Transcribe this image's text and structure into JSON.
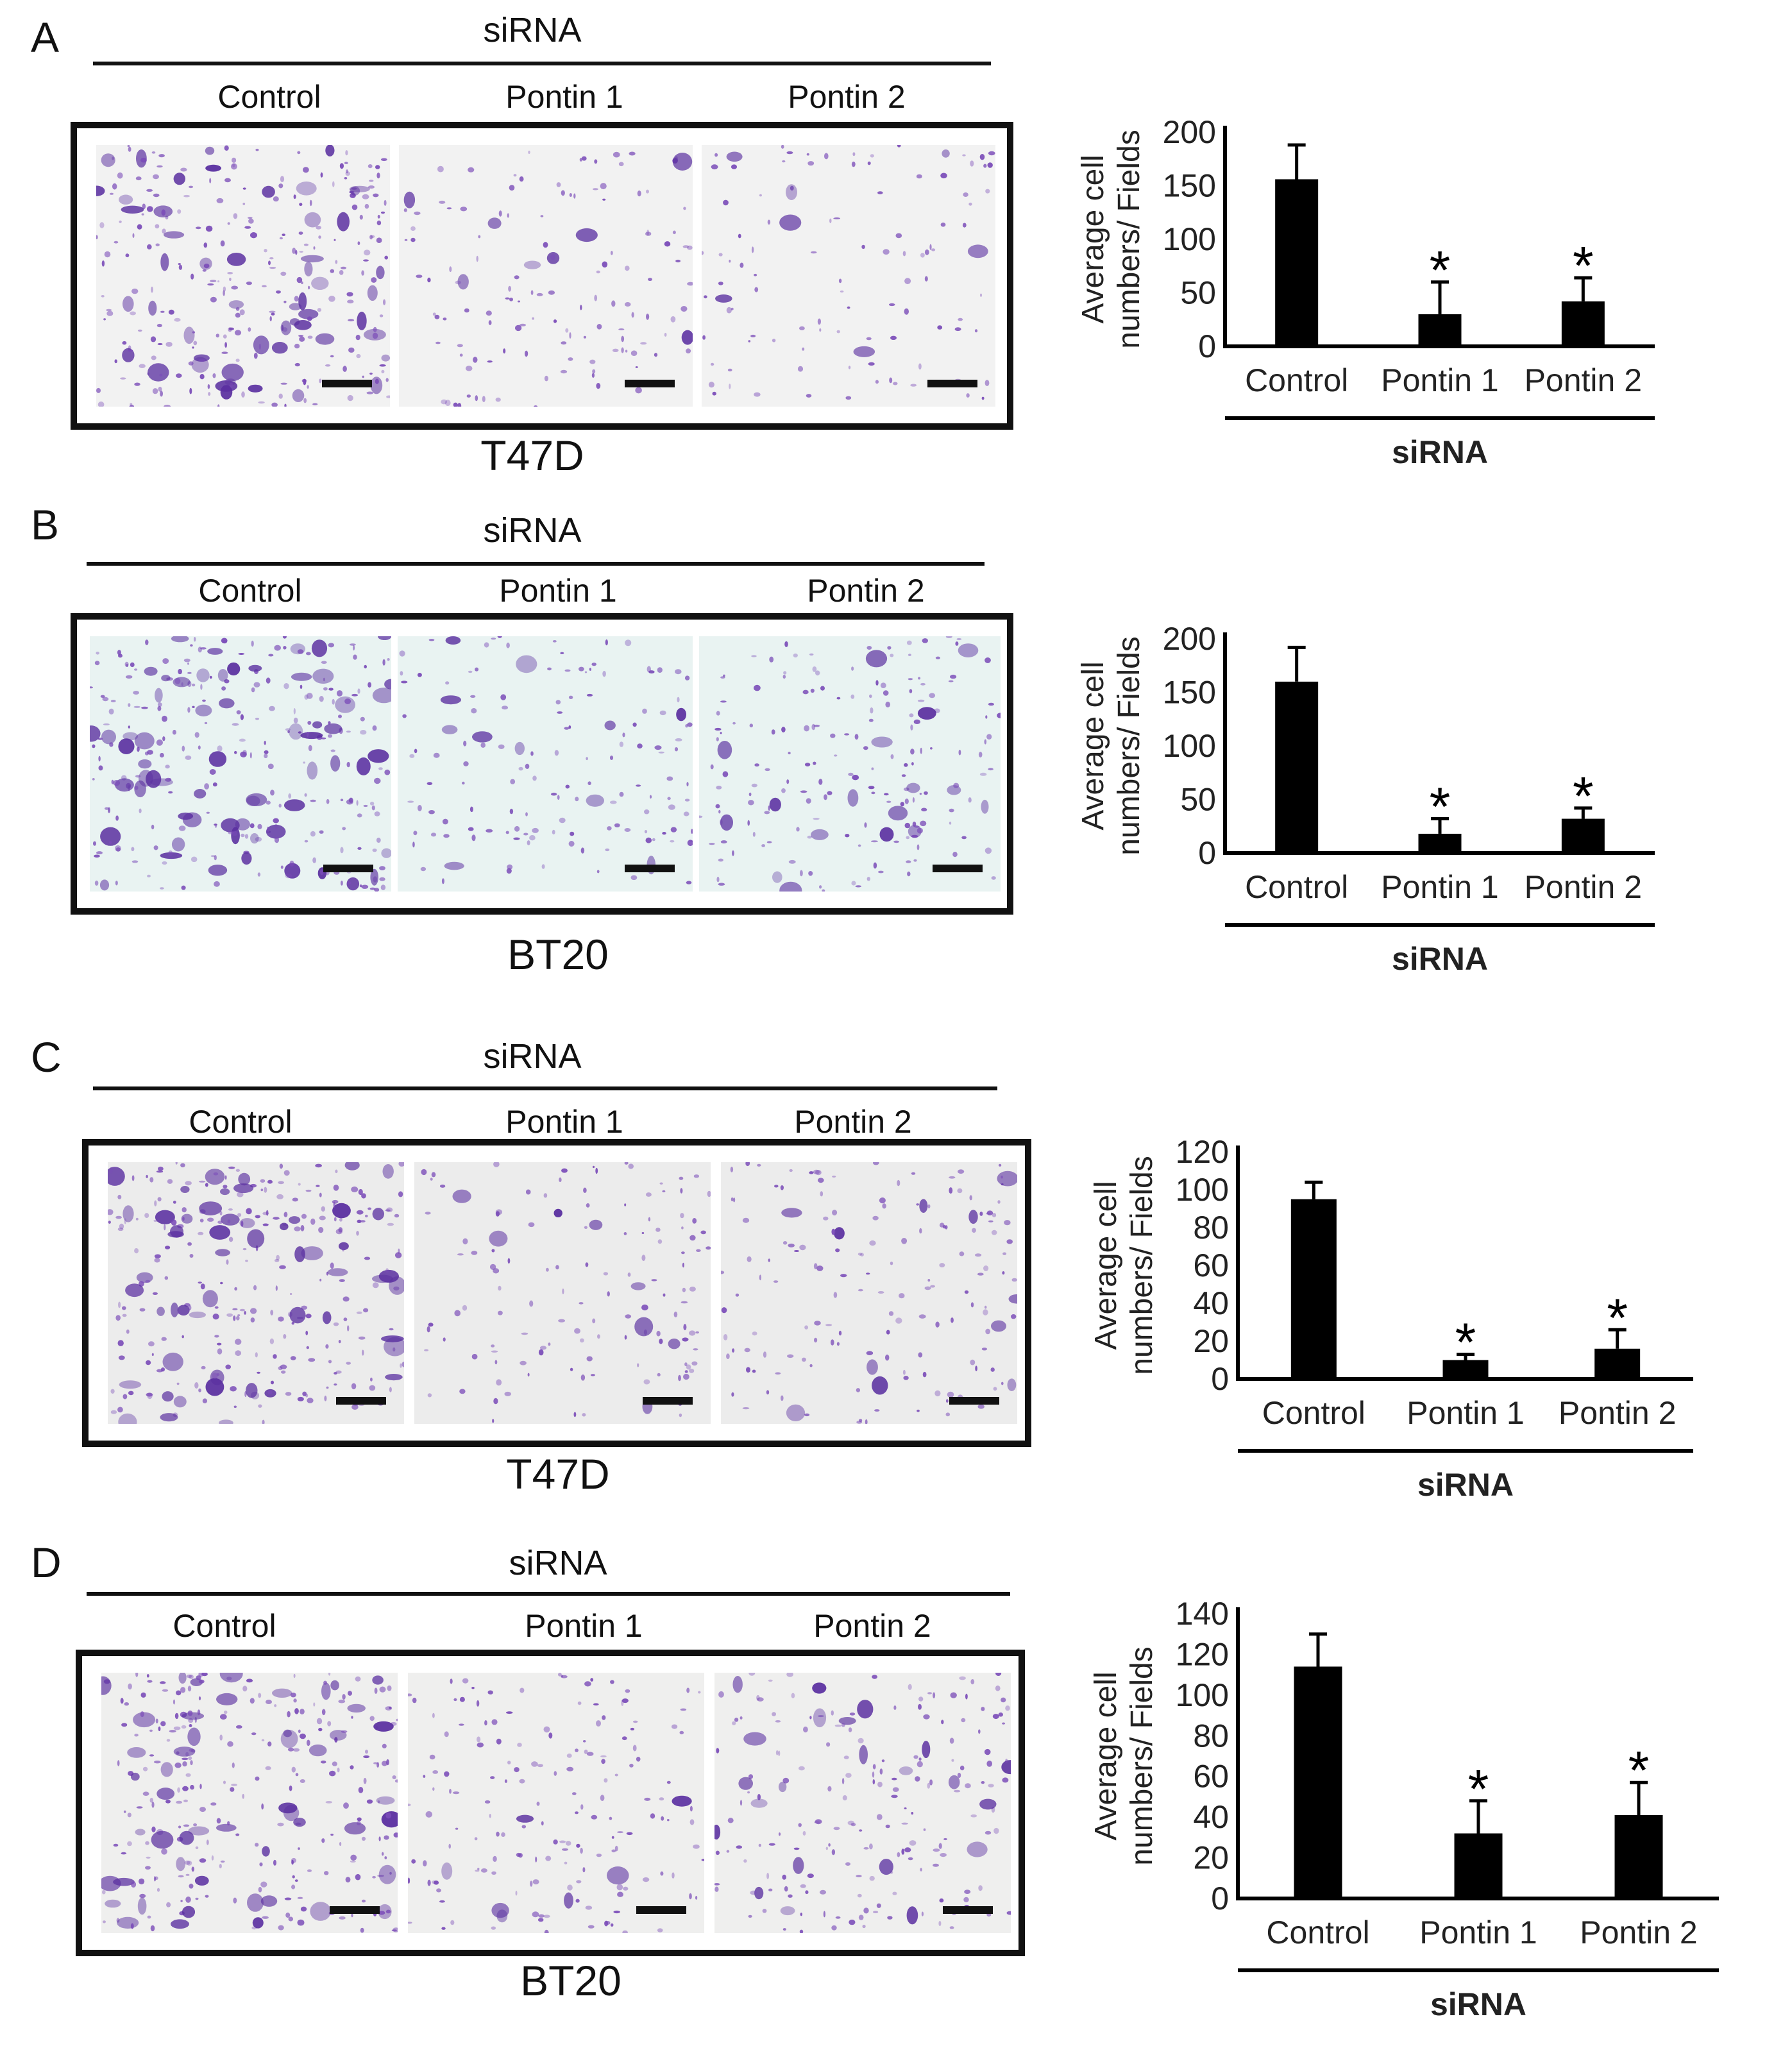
{
  "panels": [
    {
      "letter": "A",
      "header": "siRNA",
      "conditions": [
        "Control",
        "Pontin 1",
        "Pontin 2"
      ],
      "cell_line": "T47D",
      "micro_tint": "#f2f2f2",
      "density": [
        1.0,
        0.35,
        0.25
      ]
    },
    {
      "letter": "B",
      "header": "siRNA",
      "conditions": [
        "Control",
        "Pontin 1",
        "Pontin 2"
      ],
      "cell_line": "BT20",
      "micro_tint": "#e9f3f2",
      "density": [
        1.0,
        0.4,
        0.55
      ]
    },
    {
      "letter": "C",
      "header": "siRNA",
      "conditions": [
        "Control",
        "Pontin 1",
        "Pontin 2"
      ],
      "cell_line": "T47D",
      "micro_tint": "#ececec",
      "density": [
        1.0,
        0.35,
        0.45
      ]
    },
    {
      "letter": "D",
      "header": "siRNA",
      "conditions": [
        "Control",
        "Pontin 1",
        "Pontin 2"
      ],
      "cell_line": "BT20",
      "micro_tint": "#efefee",
      "density": [
        1.0,
        0.5,
        0.6
      ]
    }
  ],
  "colors": {
    "bar": "#000000",
    "stain": "#7a4bb8",
    "stain_dark": "#5a2fa0"
  },
  "chart_data": [
    {
      "type": "bar",
      "ylabel": [
        "Average cell",
        "numbers/ Fields"
      ],
      "categories": [
        "Control",
        "Pontin 1",
        "Pontin 2"
      ],
      "values": [
        156,
        30,
        42
      ],
      "errors": [
        32,
        30,
        22
      ],
      "significant": [
        false,
        true,
        true
      ],
      "yticks": [
        0,
        50,
        100,
        150,
        200
      ],
      "ylim": [
        0,
        200
      ],
      "xlabel": "siRNA",
      "marker": "*"
    },
    {
      "type": "bar",
      "ylabel": [
        "Average cell",
        "numbers/ Fields"
      ],
      "categories": [
        "Control",
        "Pontin 1",
        "Pontin 2"
      ],
      "values": [
        160,
        18,
        32
      ],
      "errors": [
        32,
        14,
        10
      ],
      "significant": [
        false,
        true,
        true
      ],
      "yticks": [
        0,
        50,
        100,
        150,
        200
      ],
      "ylim": [
        0,
        200
      ],
      "xlabel": "siRNA",
      "marker": "*"
    },
    {
      "type": "bar",
      "ylabel": [
        "Average cell",
        "numbers/ Fields"
      ],
      "categories": [
        "Control",
        "Pontin 1",
        "Pontin 2"
      ],
      "values": [
        95,
        10,
        16
      ],
      "errors": [
        9,
        3,
        10
      ],
      "significant": [
        false,
        true,
        true
      ],
      "yticks": [
        0,
        20,
        40,
        60,
        80,
        100,
        120
      ],
      "ylim": [
        0,
        120
      ],
      "xlabel": "siRNA",
      "marker": "*"
    },
    {
      "type": "bar",
      "ylabel": [
        "Average cell",
        "numbers/ Fields"
      ],
      "categories": [
        "Control",
        "Pontin 1",
        "Pontin 2"
      ],
      "values": [
        114,
        32,
        41
      ],
      "errors": [
        16,
        16,
        16
      ],
      "significant": [
        false,
        true,
        true
      ],
      "yticks": [
        0,
        20,
        40,
        60,
        80,
        100,
        120,
        140
      ],
      "ylim": [
        0,
        140
      ],
      "xlabel": "siRNA",
      "marker": "*"
    }
  ]
}
